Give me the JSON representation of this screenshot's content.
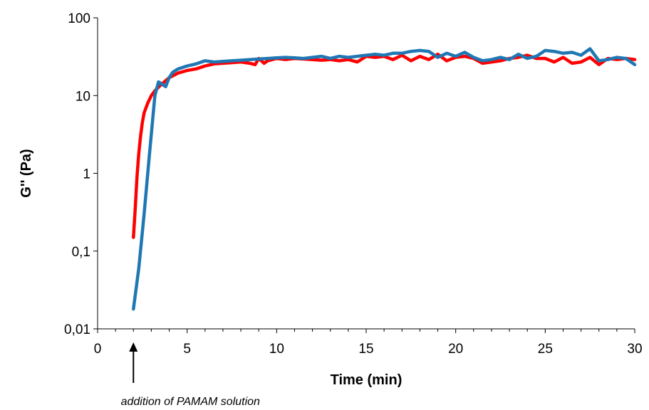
{
  "chart_data": {
    "type": "line",
    "title": "",
    "xlabel": "Time (min)",
    "ylabel": "G'' (Pa)",
    "xlim": [
      0,
      30
    ],
    "ylim": [
      0.01,
      100
    ],
    "yscale": "log",
    "x_ticks": [
      "0",
      "5",
      "10",
      "15",
      "20",
      "25",
      "30"
    ],
    "y_ticks": [
      "0,01",
      "0,1",
      "1",
      "10",
      "100"
    ],
    "grid": false,
    "legend": "none",
    "annotation": {
      "text": "addition of PAMAM solution",
      "x": 2
    },
    "series": [
      {
        "color": "#ff0000",
        "x": [
          2.0,
          2.1,
          2.2,
          2.3,
          2.4,
          2.5,
          2.6,
          2.8,
          3.0,
          3.2,
          3.5,
          4.0,
          4.5,
          5.0,
          5.5,
          6.0,
          6.5,
          7.0,
          7.5,
          8.0,
          8.5,
          8.8,
          9.0,
          9.3,
          9.5,
          10.0,
          10.5,
          11.0,
          11.5,
          12.0,
          12.5,
          13.0,
          13.5,
          14.0,
          14.5,
          15.0,
          15.5,
          16.0,
          16.5,
          17.0,
          17.5,
          18.0,
          18.5,
          19.0,
          19.5,
          20.0,
          20.5,
          21.0,
          21.5,
          22.0,
          22.5,
          23.0,
          23.5,
          24.0,
          24.5,
          25.0,
          25.5,
          26.0,
          26.5,
          27.0,
          27.5,
          28.0,
          28.5,
          29.0,
          29.5,
          30.0
        ],
        "values": [
          0.15,
          0.35,
          0.9,
          1.8,
          3.0,
          4.5,
          6.0,
          8.0,
          10.0,
          11.5,
          13.5,
          17.0,
          19.5,
          21.0,
          22.0,
          24.0,
          25.5,
          26.0,
          26.5,
          27.0,
          26.0,
          25.0,
          30.0,
          26.0,
          28.0,
          30.0,
          29.0,
          30.0,
          29.5,
          29.0,
          28.5,
          29.0,
          28.0,
          29.0,
          27.0,
          32.0,
          31.0,
          32.0,
          29.0,
          33.0,
          28.0,
          32.0,
          29.0,
          34.0,
          28.0,
          31.0,
          32.0,
          30.0,
          26.0,
          27.0,
          28.0,
          30.0,
          31.0,
          33.0,
          30.0,
          30.0,
          27.0,
          31.0,
          26.0,
          27.0,
          31.0,
          25.0,
          30.0,
          29.0,
          30.0,
          29.0
        ]
      },
      {
        "color": "#1f77b4",
        "x": [
          2.0,
          2.3,
          2.6,
          2.9,
          3.2,
          3.4,
          3.6,
          3.8,
          4.0,
          4.2,
          4.5,
          5.0,
          5.5,
          6.0,
          6.5,
          7.0,
          7.5,
          8.0,
          8.5,
          9.0,
          9.5,
          10.0,
          10.5,
          11.0,
          11.5,
          12.0,
          12.5,
          13.0,
          13.5,
          14.0,
          14.5,
          15.0,
          15.5,
          16.0,
          16.5,
          17.0,
          17.5,
          18.0,
          18.5,
          19.0,
          19.5,
          20.0,
          20.5,
          21.0,
          21.5,
          22.0,
          22.5,
          23.0,
          23.5,
          24.0,
          24.5,
          25.0,
          25.5,
          26.0,
          26.5,
          27.0,
          27.5,
          28.0,
          28.5,
          29.0,
          29.5,
          30.0
        ],
        "values": [
          0.018,
          0.06,
          0.3,
          1.8,
          10.0,
          15.0,
          14.0,
          13.0,
          17.0,
          20.0,
          22.0,
          24.0,
          25.5,
          28.0,
          27.0,
          27.5,
          28.0,
          28.5,
          29.0,
          29.5,
          30.0,
          30.5,
          31.0,
          30.5,
          30.0,
          31.0,
          32.0,
          30.0,
          32.0,
          31.0,
          32.0,
          33.0,
          34.0,
          33.0,
          35.0,
          35.0,
          37.0,
          38.0,
          37.0,
          31.0,
          35.0,
          32.0,
          36.0,
          31.0,
          28.0,
          29.0,
          31.0,
          29.0,
          34.0,
          30.0,
          32.0,
          38.0,
          37.0,
          35.0,
          36.0,
          33.0,
          40.0,
          28.0,
          29.0,
          31.0,
          30.0,
          25.0
        ]
      }
    ]
  }
}
